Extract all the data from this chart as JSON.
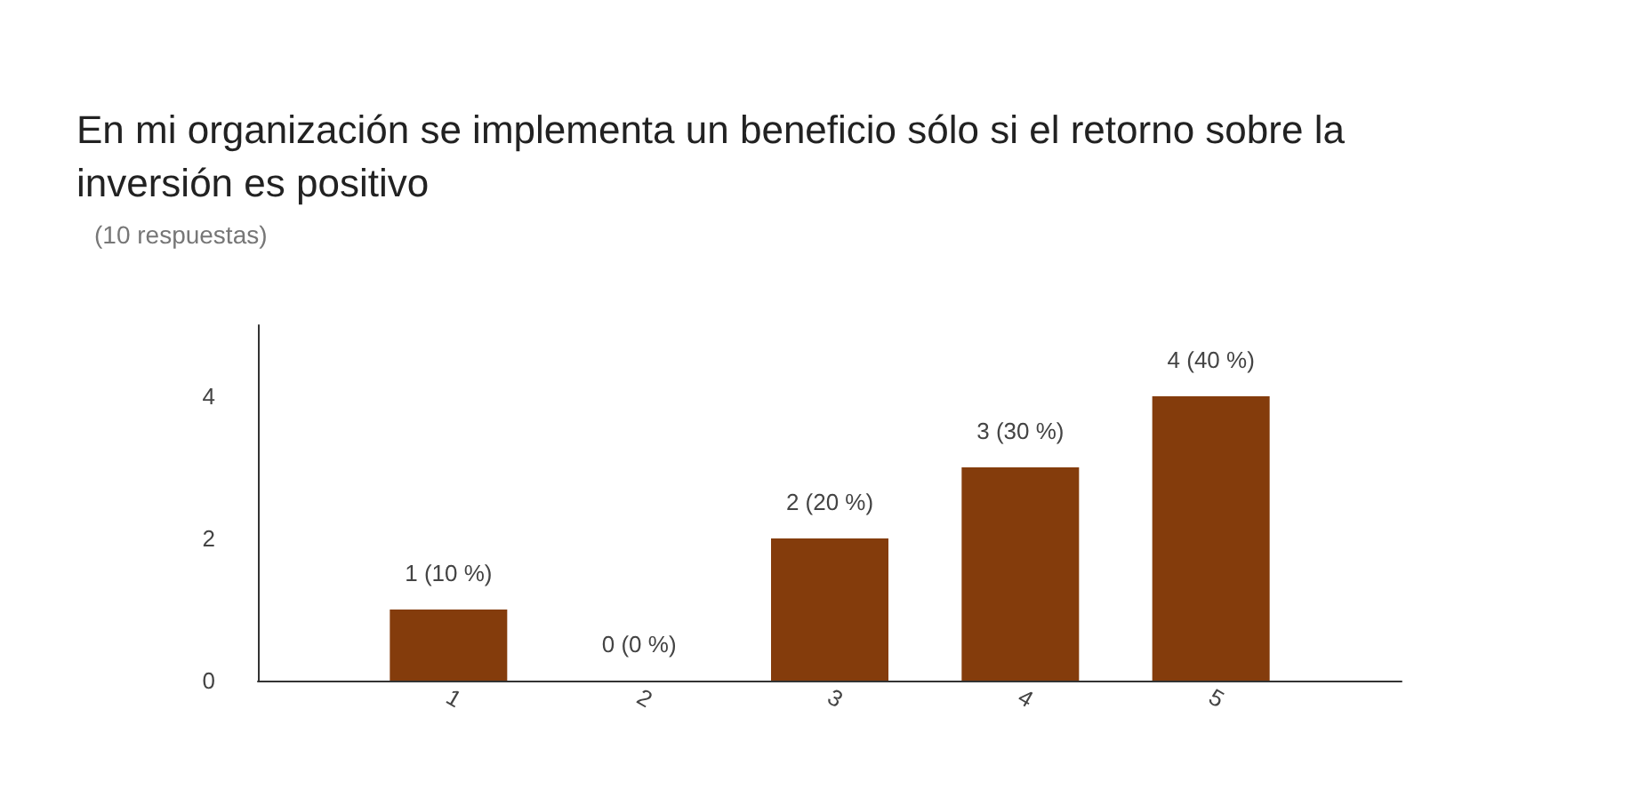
{
  "chart_data": {
    "type": "bar",
    "title": "En mi organización se implementa un beneficio sólo si el retorno sobre la inversión es positivo",
    "subtitle": "(10 respuestas)",
    "x": [
      1,
      2,
      3,
      4,
      5
    ],
    "xlim": [
      0,
      6
    ],
    "xticks": [
      1,
      2,
      3,
      4,
      5
    ],
    "values": [
      1,
      0,
      2,
      3,
      4
    ],
    "color": "#843c0c",
    "value_labels": [
      "1 (10 %)",
      "0 (0 %)",
      "2 (20 %)",
      "3 (30 %)",
      "4 (40 %)"
    ],
    "ylim": [
      0,
      5
    ],
    "yticks": [
      0,
      2,
      4
    ],
    "grid": false
  }
}
